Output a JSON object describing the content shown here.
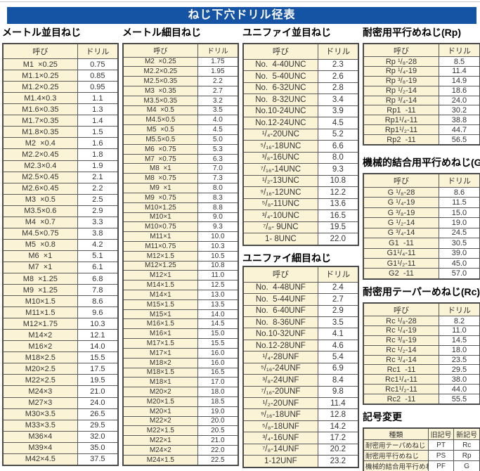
{
  "page": {
    "title": "ねじ下穴ドリル径表"
  },
  "colors": {
    "title_bar_blue": "#1553a4",
    "cell_cream": "#faf3d6",
    "table_border": "#4a4a4a",
    "text": "#333333"
  },
  "tables": [
    {
      "title": "メートル並目ねじ",
      "headers": [
        "呼び",
        "ドリル"
      ],
      "rows": [
        [
          "M1  ×0.25",
          "0.75"
        ],
        [
          "M1.1×0.25",
          "0.85"
        ],
        [
          "M1.2×0.25",
          "0.95"
        ],
        [
          "M1.4×0.3",
          "1.1"
        ],
        [
          "M1.6×0.35",
          "1.3"
        ],
        [
          "M1.7×0.35",
          "1.4"
        ],
        [
          "M1.8×0.35",
          "1.5"
        ],
        [
          "M2  ×0.4",
          "1.6"
        ],
        [
          "M2.2×0.45",
          "1.8"
        ],
        [
          "M2.3×0.4",
          "1.9"
        ],
        [
          "M2.5×0.45",
          "2.1"
        ],
        [
          "M2.6×0.45",
          "2.2"
        ],
        [
          "M3  ×0.5",
          "2.5"
        ],
        [
          "M3.5×0.6",
          "2.9"
        ],
        [
          "M4  ×0.7",
          "3.3"
        ],
        [
          "M4.5×0.75",
          "3.8"
        ],
        [
          "M5  ×0.8",
          "4.2"
        ],
        [
          "M6  ×1",
          "5.1"
        ],
        [
          "M7  ×1",
          "6.1"
        ],
        [
          "M8  ×1.25",
          "6.8"
        ],
        [
          "M9  ×1.25",
          "7.8"
        ],
        [
          "M10×1.5",
          "8.6"
        ],
        [
          "M11×1.5",
          "9.6"
        ],
        [
          "M12×1.75",
          "10.3"
        ],
        [
          "M14×2",
          "12.1"
        ],
        [
          "M16×2",
          "14.0"
        ],
        [
          "M18×2.5",
          "15.5"
        ],
        [
          "M20×2.5",
          "17.5"
        ],
        [
          "M22×2.5",
          "19.5"
        ],
        [
          "M24×3",
          "21.0"
        ],
        [
          "M27×3",
          "24.0"
        ],
        [
          "M30×3.5",
          "26.5"
        ],
        [
          "M33×3.5",
          "29.5"
        ],
        [
          "M36×4",
          "32.0"
        ],
        [
          "M39×4",
          "35.0"
        ],
        [
          "M42×4.5",
          "37.5"
        ]
      ]
    },
    {
      "title": "メートル細目ねじ",
      "headers": [
        "呼び",
        "ドリル"
      ],
      "rows": [
        [
          "M2  ×0.25",
          "1.75"
        ],
        [
          "M2.2×0.25",
          "1.95"
        ],
        [
          "M2.5×0.35",
          "2.2"
        ],
        [
          "M3  ×0.35",
          "2.7"
        ],
        [
          "M3.5×0.35",
          "3.2"
        ],
        [
          "M4  ×0.5",
          "3.5"
        ],
        [
          "M4.5×0.5",
          "4.0"
        ],
        [
          "M5  ×0.5",
          "4.5"
        ],
        [
          "M5.5×0.5",
          "5.0"
        ],
        [
          "M6  ×0.75",
          "5.3"
        ],
        [
          "M7  ×0.75",
          "6.3"
        ],
        [
          "M8  ×1",
          "7.0"
        ],
        [
          "M8  ×0.75",
          "7.3"
        ],
        [
          "M9  ×1",
          "8.0"
        ],
        [
          "M9  ×0.75",
          "8.3"
        ],
        [
          "M10×1.25",
          "8.8"
        ],
        [
          "M10×1",
          "9.0"
        ],
        [
          "M10×0.75",
          "9.3"
        ],
        [
          "M11×1",
          "10.0"
        ],
        [
          "M11×0.75",
          "10.3"
        ],
        [
          "M12×1.5",
          "10.5"
        ],
        [
          "M12×1.25",
          "10.8"
        ],
        [
          "M12×1",
          "11.0"
        ],
        [
          "M14×1.5",
          "12.5"
        ],
        [
          "M14×1",
          "13.0"
        ],
        [
          "M15×1.5",
          "13.5"
        ],
        [
          "M15×1",
          "14.0"
        ],
        [
          "M16×1.5",
          "14.5"
        ],
        [
          "M16×1",
          "15.0"
        ],
        [
          "M17×1.5",
          "15.5"
        ],
        [
          "M17×1",
          "16.0"
        ],
        [
          "M18×2",
          "16.0"
        ],
        [
          "M18×1.5",
          "16.5"
        ],
        [
          "M18×1",
          "17.0"
        ],
        [
          "M20×2",
          "18.0"
        ],
        [
          "M20×1.5",
          "18.5"
        ],
        [
          "M20×1",
          "19.0"
        ],
        [
          "M22×2",
          "20.0"
        ],
        [
          "M22×1.5",
          "20.5"
        ],
        [
          "M22×1",
          "21.0"
        ],
        [
          "M24×2",
          "22.0"
        ],
        [
          "M24×1.5",
          "22.5"
        ]
      ]
    },
    {
      "title": "ユニファイ並目ねじ",
      "headers": [
        "呼び",
        "ドリル"
      ],
      "rows": [
        [
          "No.  4-40UNC",
          "2.3"
        ],
        [
          "No.  5-40UNC",
          "2.6"
        ],
        [
          "No.  6-32UNC",
          "2.8"
        ],
        [
          "No.  8-32UNC",
          "3.4"
        ],
        [
          "No.10-24UNC",
          "3.9"
        ],
        [
          "No.12-24UNC",
          "4.5"
        ],
        [
          "¹/₄-20UNC",
          "5.2"
        ],
        [
          "⁵/₁₆-18UNC",
          "6.6"
        ],
        [
          "³/₈-16UNC",
          "8.0"
        ],
        [
          "⁷/₁₆-14UNC",
          "9.3"
        ],
        [
          "¹/₂-13UNC",
          "10.8"
        ],
        [
          "⁹/₁₆-12UNC",
          "12.2"
        ],
        [
          "⁵/₈-11UNC",
          "13.6"
        ],
        [
          "³/₄-10UNC",
          "16.5"
        ],
        [
          "⁷/₈- 9UNC",
          "19.5"
        ],
        [
          "1- 8UNC",
          "22.0"
        ]
      ]
    },
    {
      "title": "ユニファイ細目ねじ",
      "headers": [
        "呼び",
        "ドリル"
      ],
      "rows": [
        [
          "No.  4-48UNF",
          "2.4"
        ],
        [
          "No.  5-44UNF",
          "2.7"
        ],
        [
          "No.  6-40UNF",
          "2.9"
        ],
        [
          "No.  8-36UNF",
          "3.5"
        ],
        [
          "No.10-32UNF",
          "4.1"
        ],
        [
          "No.12-28UNF",
          "4.6"
        ],
        [
          "¹/₄-28UNF",
          "5.4"
        ],
        [
          "⁵/₁₆-24UNF",
          "6.9"
        ],
        [
          "³/₈-24UNF",
          "8.4"
        ],
        [
          "⁷/₁₆-20UNF",
          "9.8"
        ],
        [
          "¹/₂-20UNF",
          "11.4"
        ],
        [
          "⁹/₁₆-18UNF",
          "12.8"
        ],
        [
          "⁵/₈-18UNF",
          "14.2"
        ],
        [
          "³/₄-16UNF",
          "17.2"
        ],
        [
          "⁷/₈-14UNF",
          "20.2"
        ],
        [
          "1-12UNF",
          "23.2"
        ]
      ]
    },
    {
      "title": "耐密用平行めねじ(Rp)",
      "headers": [
        "呼び",
        "ドリル"
      ],
      "rows": [
        [
          "Rp ¹/₈-28",
          "8.5"
        ],
        [
          "Rp ¹/₄-19",
          "11.4"
        ],
        [
          "Rp ³/₈-19",
          "14.9"
        ],
        [
          "Rp ¹/₂-14",
          "18.6"
        ],
        [
          "Rp ³/₄-14",
          "24.0"
        ],
        [
          "Rp1  -11",
          "30.2"
        ],
        [
          "Rp1¹/₄-11",
          "38.8"
        ],
        [
          "Rp1¹/₂-11",
          "44.7"
        ],
        [
          "Rp2  -11",
          "56.5"
        ]
      ]
    },
    {
      "title": "機械的結合用平行めねじ(G)",
      "headers": [
        "呼び",
        "ドリル"
      ],
      "rows": [
        [
          "G ¹/₈-28",
          "8.6"
        ],
        [
          "G ¹/₄-19",
          "11.5"
        ],
        [
          "G ³/₈-19",
          "15.0"
        ],
        [
          "G ¹/₂-14",
          "19.0"
        ],
        [
          "G ³/₄-14",
          "24.5"
        ],
        [
          "G1  -11",
          "30.5"
        ],
        [
          "G1¹/₄-11",
          "39.0"
        ],
        [
          "G1¹/₂-11",
          "45.0"
        ],
        [
          "G2  -11",
          "57.0"
        ]
      ]
    },
    {
      "title": "耐密用テーパーめねじ(Rc)",
      "headers": [
        "呼び",
        "ドリル"
      ],
      "rows": [
        [
          "Rc ¹/₈-28",
          "8.2"
        ],
        [
          "Rc ¹/₄-19",
          "11.0"
        ],
        [
          "Rc ³/₈-19",
          "14.5"
        ],
        [
          "Rc ¹/₂-14",
          "18.0"
        ],
        [
          "Rc ³/₄-14",
          "23.5"
        ],
        [
          "Rc1  -11",
          "29.5"
        ],
        [
          "Rc1¹/₄-11",
          "38.0"
        ],
        [
          "Rc1¹/₂-11",
          "44.0"
        ],
        [
          "Rc2  -11",
          "55.5"
        ]
      ]
    },
    {
      "title": "記号変更",
      "headers": [
        "種類",
        "旧記号",
        "新記号"
      ],
      "rows": [
        [
          "耐密用テーパめねじ",
          "PT",
          "Rc"
        ],
        [
          "耐密用平行めねじ",
          "PS",
          "Rp"
        ],
        [
          "機械的結合用平行めねじ",
          "PF",
          "G"
        ]
      ]
    }
  ]
}
